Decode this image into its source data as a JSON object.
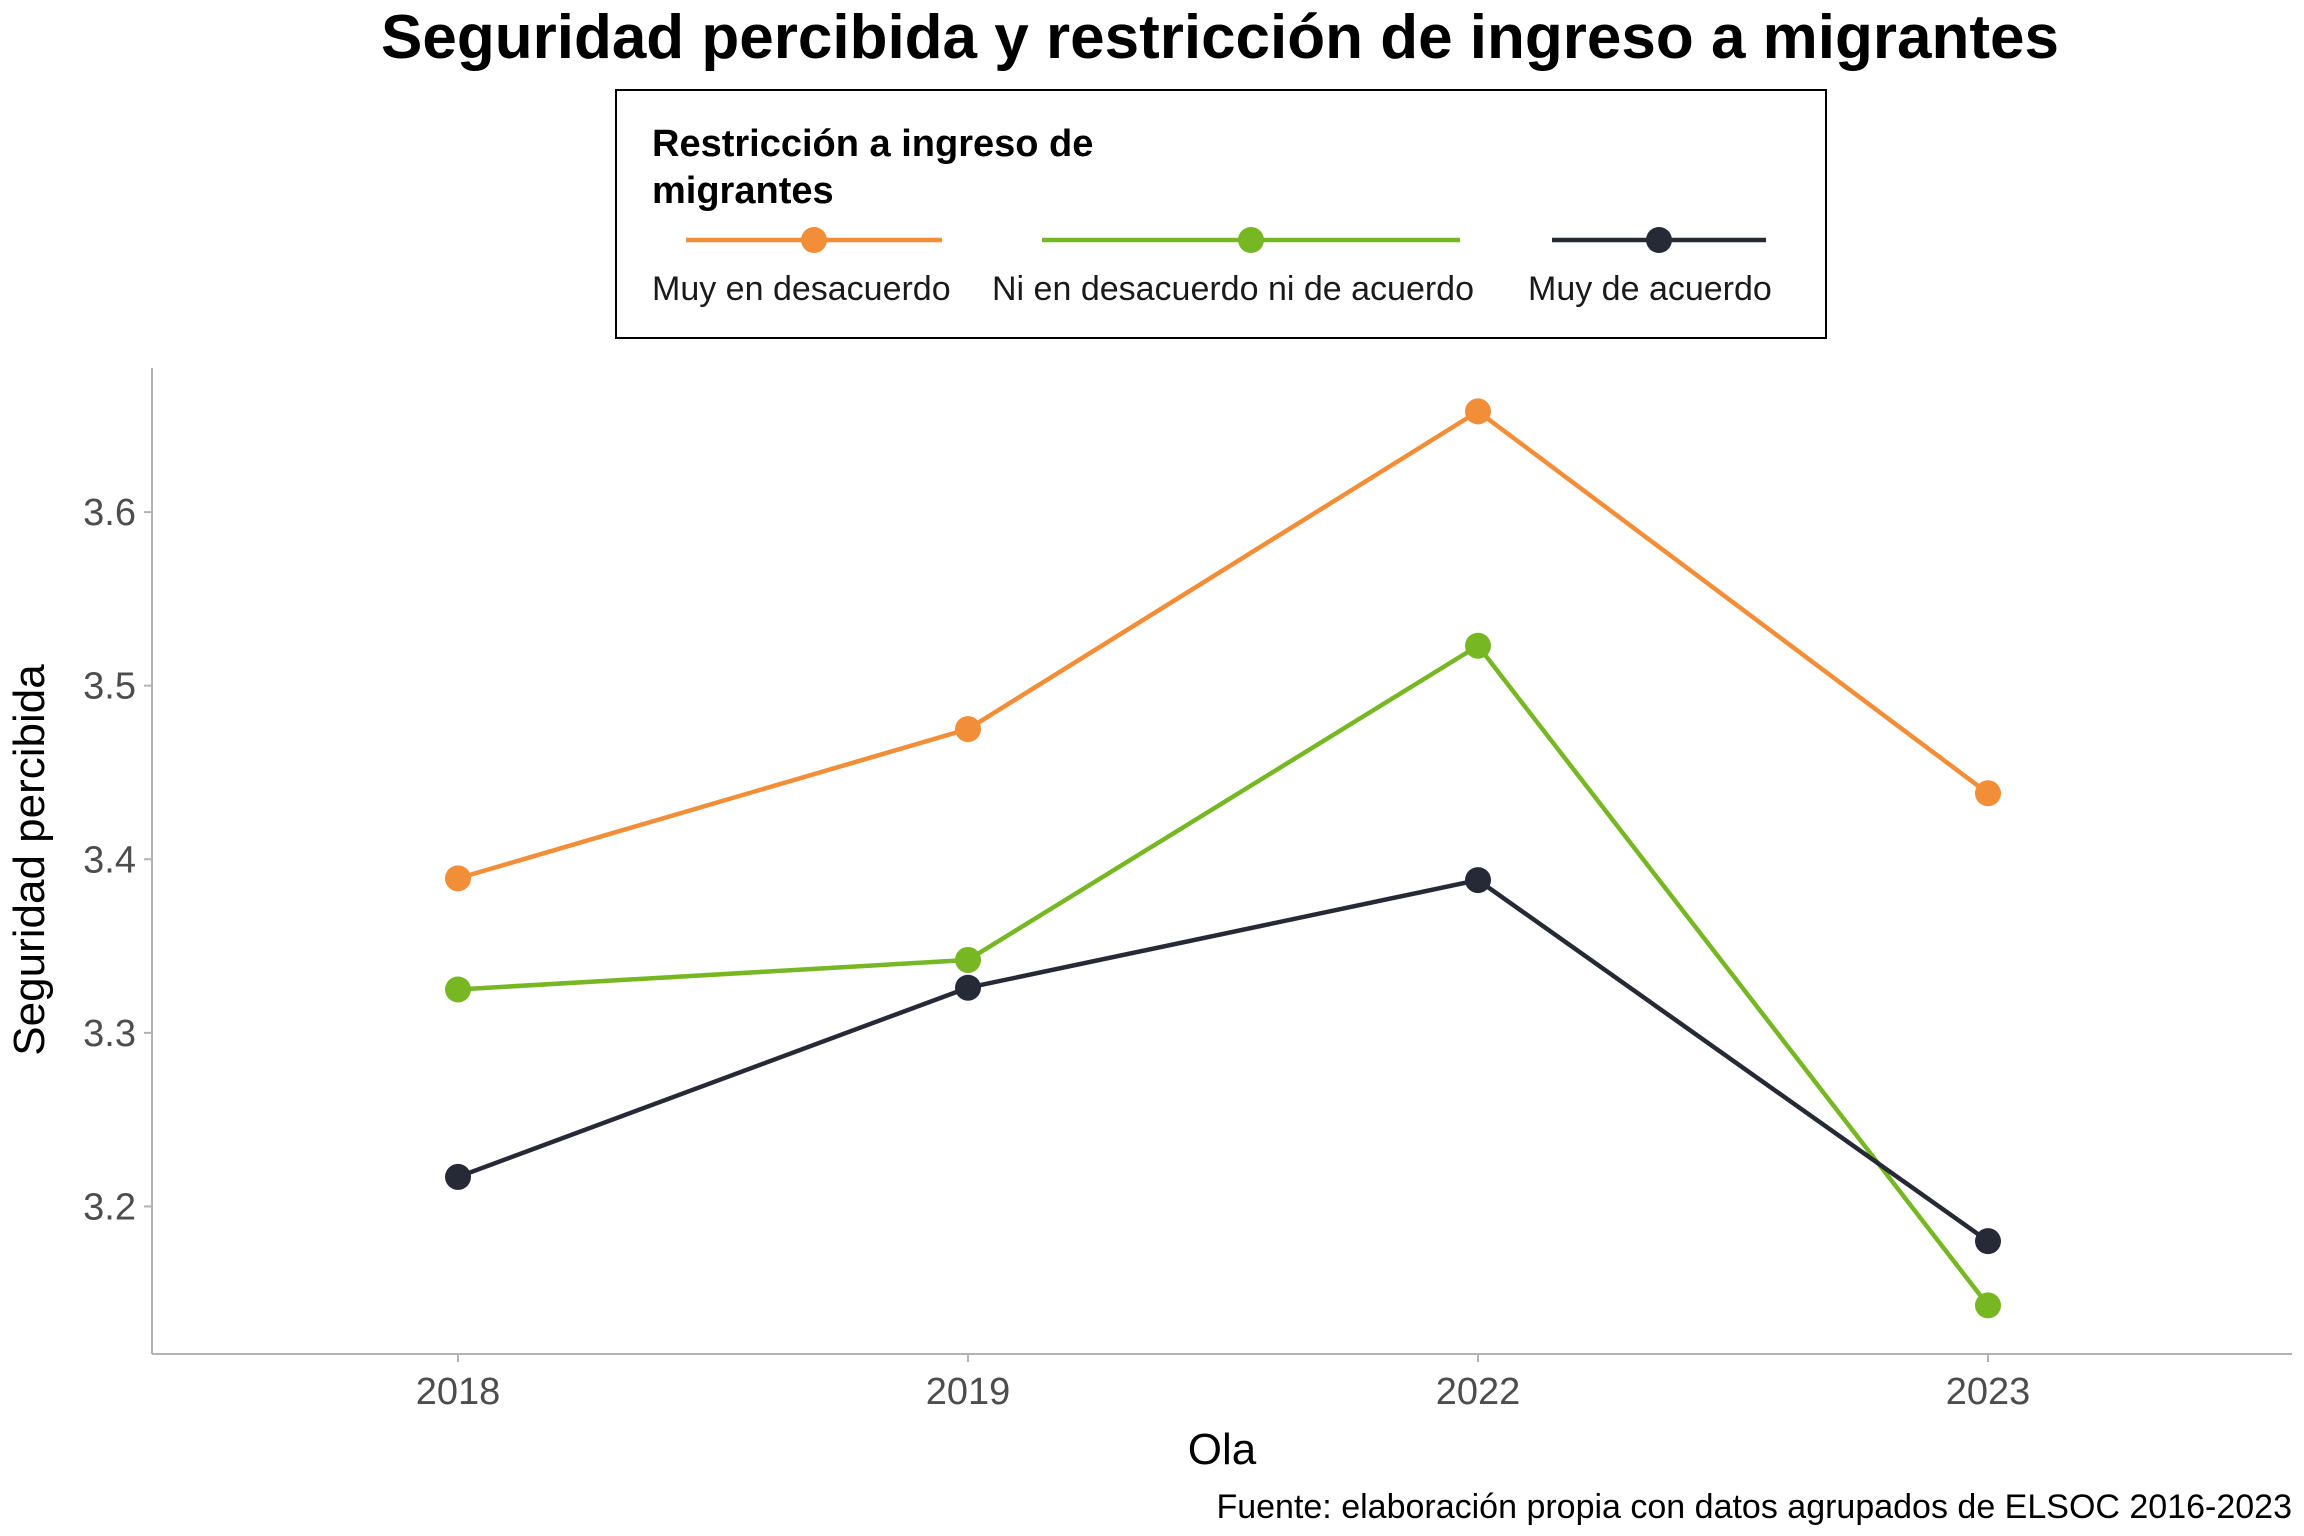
{
  "chart_data": {
    "type": "line",
    "title": "Seguridad percibida y restricción de ingreso a migrantes",
    "xlabel": "Ola",
    "ylabel": "Seguridad percibida",
    "caption": "Fuente: elaboración propia con datos agrupados de ELSOC 2016-2023",
    "categories": [
      "2018",
      "2019",
      "2022",
      "2023"
    ],
    "y_ticks": [
      3.2,
      3.3,
      3.4,
      3.5,
      3.6
    ],
    "y_tick_labels": [
      "3.2",
      "3.3",
      "3.4",
      "3.5",
      "3.6"
    ],
    "ylim": [
      3.115,
      3.683
    ],
    "grid": false,
    "legend": {
      "title_line1": "Restricción a ingreso de",
      "title_line2": "migrantes",
      "position": "top"
    },
    "series": [
      {
        "name": "Muy en desacuerdo",
        "color": "#F28E38",
        "values": [
          3.389,
          3.475,
          3.658,
          3.438
        ]
      },
      {
        "name": "Ni en desacuerdo ni de acuerdo",
        "color": "#76B723",
        "values": [
          3.325,
          3.342,
          3.523,
          3.143
        ]
      },
      {
        "name": "Muy de acuerdo",
        "color": "#262A36",
        "values": [
          3.217,
          3.326,
          3.388,
          3.18
        ]
      }
    ]
  }
}
